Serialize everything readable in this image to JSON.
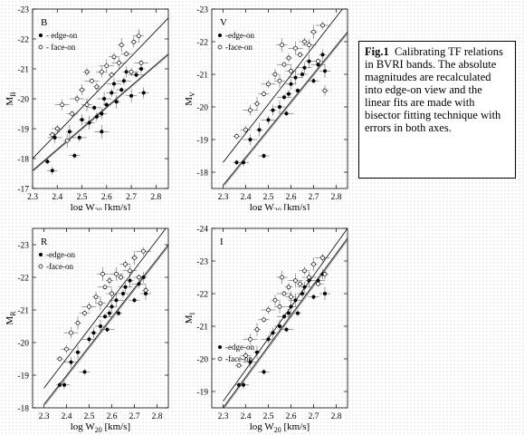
{
  "caption": {
    "label": "Fig.1",
    "text": "Calibrating TF relations in BVRI bands. The absolute magnitudes are recalculated into edge-on view and the linear fits are made with bisector fitting technique with errors in both axes."
  },
  "chart_data": [
    {
      "type": "scatter",
      "band_label": "B",
      "xlabel": "log W20 [km/s]",
      "ylabel": "MB",
      "xlim": [
        2.3,
        2.85
      ],
      "ylim": [
        -17,
        -23
      ],
      "xticks": [
        "2.3",
        "2.4",
        "2.5",
        "2.6",
        "2.7",
        "2.8"
      ],
      "yticks": [
        "-17",
        "-18",
        "-19",
        "-20",
        "-21",
        "-22",
        "-23"
      ],
      "legend_placement": "top-left",
      "series": [
        {
          "name": "- edge-on",
          "marker": "filled-circle",
          "fit": [
            [
              2.3,
              -17.6
            ],
            [
              2.85,
              -21.5
            ]
          ],
          "points": [
            [
              2.36,
              -17.9
            ],
            [
              2.38,
              -17.6
            ],
            [
              2.39,
              -18.7
            ],
            [
              2.45,
              -18.9
            ],
            [
              2.47,
              -18.1
            ],
            [
              2.49,
              -18.7
            ],
            [
              2.5,
              -19.3
            ],
            [
              2.53,
              -19.2
            ],
            [
              2.55,
              -19.7
            ],
            [
              2.56,
              -19.4
            ],
            [
              2.58,
              -19.5
            ],
            [
              2.59,
              -20.0
            ],
            [
              2.6,
              -19.8
            ],
            [
              2.62,
              -20.2
            ],
            [
              2.63,
              -20.5
            ],
            [
              2.64,
              -19.9
            ],
            [
              2.66,
              -20.3
            ],
            [
              2.67,
              -20.6
            ],
            [
              2.68,
              -20.9
            ],
            [
              2.7,
              -20.1
            ],
            [
              2.72,
              -20.8
            ],
            [
              2.74,
              -21.0
            ],
            [
              2.75,
              -20.2
            ],
            [
              2.58,
              -18.9
            ]
          ]
        },
        {
          "name": "- face-on",
          "marker": "open-circle",
          "fit": [
            [
              2.3,
              -18.0
            ],
            [
              2.85,
              -22.7
            ]
          ],
          "points": [
            [
              2.38,
              -18.8
            ],
            [
              2.4,
              -19.0
            ],
            [
              2.42,
              -19.8
            ],
            [
              2.44,
              -18.6
            ],
            [
              2.46,
              -19.5
            ],
            [
              2.48,
              -20.0
            ],
            [
              2.5,
              -20.3
            ],
            [
              2.52,
              -19.8
            ],
            [
              2.54,
              -20.6
            ],
            [
              2.56,
              -20.4
            ],
            [
              2.58,
              -20.9
            ],
            [
              2.6,
              -21.1
            ],
            [
              2.62,
              -20.8
            ],
            [
              2.63,
              -21.4
            ],
            [
              2.65,
              -21.2
            ],
            [
              2.66,
              -21.8
            ],
            [
              2.68,
              -21.5
            ],
            [
              2.7,
              -20.9
            ],
            [
              2.71,
              -21.9
            ],
            [
              2.73,
              -22.1
            ],
            [
              2.74,
              -21.2
            ],
            [
              2.52,
              -20.9
            ]
          ]
        }
      ]
    },
    {
      "type": "scatter",
      "band_label": "V",
      "xlabel": "log W20 [km/s]",
      "ylabel": "MV",
      "xlim": [
        2.25,
        2.85
      ],
      "ylim": [
        -17.5,
        -23
      ],
      "xticks": [
        "2.3",
        "2.4",
        "2.5",
        "2.6",
        "2.7",
        "2.8"
      ],
      "yticks": [
        "-18",
        "-19",
        "-20",
        "-21",
        "-22",
        "-23"
      ],
      "legend_placement": "top-left",
      "series": [
        {
          "name": "-edge-on",
          "marker": "filled-circle",
          "fit": [
            [
              2.3,
              -17.6
            ],
            [
              2.85,
              -22.3
            ]
          ],
          "points": [
            [
              2.36,
              -18.3
            ],
            [
              2.39,
              -18.3
            ],
            [
              2.42,
              -19.0
            ],
            [
              2.46,
              -19.3
            ],
            [
              2.48,
              -18.5
            ],
            [
              2.5,
              -19.6
            ],
            [
              2.52,
              -19.9
            ],
            [
              2.55,
              -20.0
            ],
            [
              2.57,
              -20.3
            ],
            [
              2.59,
              -20.4
            ],
            [
              2.6,
              -20.7
            ],
            [
              2.62,
              -20.9
            ],
            [
              2.63,
              -20.5
            ],
            [
              2.65,
              -21.0
            ],
            [
              2.66,
              -21.2
            ],
            [
              2.68,
              -21.4
            ],
            [
              2.7,
              -20.8
            ],
            [
              2.72,
              -21.3
            ],
            [
              2.74,
              -21.6
            ],
            [
              2.75,
              -21.1
            ],
            [
              2.58,
              -19.8
            ]
          ]
        },
        {
          "name": "-face-on",
          "marker": "open-circle",
          "fit": [
            [
              2.3,
              -18.3
            ],
            [
              2.85,
              -23.2
            ]
          ],
          "points": [
            [
              2.36,
              -19.1
            ],
            [
              2.4,
              -19.3
            ],
            [
              2.42,
              -19.9
            ],
            [
              2.45,
              -20.1
            ],
            [
              2.48,
              -20.4
            ],
            [
              2.5,
              -20.7
            ],
            [
              2.53,
              -21.0
            ],
            [
              2.55,
              -20.8
            ],
            [
              2.57,
              -21.3
            ],
            [
              2.59,
              -21.5
            ],
            [
              2.6,
              -21.1
            ],
            [
              2.62,
              -21.8
            ],
            [
              2.64,
              -21.6
            ],
            [
              2.66,
              -22.0
            ],
            [
              2.68,
              -21.9
            ],
            [
              2.7,
              -22.3
            ],
            [
              2.72,
              -21.4
            ],
            [
              2.74,
              -22.5
            ],
            [
              2.75,
              -20.5
            ],
            [
              2.56,
              -21.9
            ]
          ]
        }
      ]
    },
    {
      "type": "scatter",
      "band_label": "R",
      "xlabel": "log W20 [km/s]",
      "ylabel": "MR",
      "xlim": [
        2.25,
        2.85
      ],
      "ylim": [
        -18,
        -23.5
      ],
      "xticks": [
        "2.3",
        "2.4",
        "2.5",
        "2.6",
        "2.7",
        "2.8"
      ],
      "yticks": [
        "-18",
        "-19",
        "-20",
        "-21",
        "-22",
        "-23"
      ],
      "legend_placement": "top-left",
      "series": [
        {
          "name": "-edge-on",
          "marker": "filled-circle",
          "fit": [
            [
              2.3,
              -18.1
            ],
            [
              2.85,
              -23.0
            ]
          ],
          "points": [
            [
              2.37,
              -18.7
            ],
            [
              2.39,
              -18.7
            ],
            [
              2.42,
              -19.4
            ],
            [
              2.45,
              -19.7
            ],
            [
              2.48,
              -19.1
            ],
            [
              2.5,
              -20.1
            ],
            [
              2.52,
              -20.3
            ],
            [
              2.55,
              -20.5
            ],
            [
              2.57,
              -20.8
            ],
            [
              2.59,
              -20.9
            ],
            [
              2.6,
              -21.1
            ],
            [
              2.62,
              -21.3
            ],
            [
              2.63,
              -20.9
            ],
            [
              2.65,
              -21.5
            ],
            [
              2.66,
              -21.7
            ],
            [
              2.68,
              -21.9
            ],
            [
              2.7,
              -21.3
            ],
            [
              2.72,
              -21.8
            ],
            [
              2.74,
              -22.0
            ],
            [
              2.75,
              -21.5
            ],
            [
              2.58,
              -20.4
            ]
          ]
        },
        {
          "name": "-face-on",
          "marker": "open-circle",
          "fit": [
            [
              2.3,
              -18.6
            ],
            [
              2.85,
              -23.6
            ]
          ],
          "points": [
            [
              2.37,
              -19.5
            ],
            [
              2.4,
              -19.8
            ],
            [
              2.42,
              -20.3
            ],
            [
              2.45,
              -20.6
            ],
            [
              2.48,
              -20.9
            ],
            [
              2.5,
              -21.1
            ],
            [
              2.53,
              -21.4
            ],
            [
              2.55,
              -21.2
            ],
            [
              2.57,
              -21.7
            ],
            [
              2.59,
              -21.9
            ],
            [
              2.6,
              -21.5
            ],
            [
              2.62,
              -22.1
            ],
            [
              2.64,
              -22.0
            ],
            [
              2.66,
              -22.4
            ],
            [
              2.68,
              -22.2
            ],
            [
              2.7,
              -22.6
            ],
            [
              2.72,
              -22.0
            ],
            [
              2.74,
              -22.8
            ],
            [
              2.75,
              -21.6
            ],
            [
              2.56,
              -22.1
            ]
          ]
        }
      ]
    },
    {
      "type": "scatter",
      "band_label": "I",
      "xlabel": "log W20 [km/s]",
      "ylabel": "MI",
      "xlim": [
        2.25,
        2.85
      ],
      "ylim": [
        -18.5,
        -24
      ],
      "xticks": [
        "2.3",
        "2.4",
        "2.5",
        "2.6",
        "2.7",
        "2.8"
      ],
      "yticks": [
        "-19",
        "-20",
        "-21",
        "-22",
        "-23",
        "-24"
      ],
      "legend_placement": "bottom-left",
      "series": [
        {
          "name": "-edge-on",
          "marker": "filled-circle",
          "fit": [
            [
              2.3,
              -18.5
            ],
            [
              2.85,
              -23.7
            ]
          ],
          "points": [
            [
              2.37,
              -19.2
            ],
            [
              2.39,
              -19.2
            ],
            [
              2.42,
              -19.9
            ],
            [
              2.45,
              -20.2
            ],
            [
              2.48,
              -19.6
            ],
            [
              2.5,
              -20.6
            ],
            [
              2.52,
              -20.8
            ],
            [
              2.55,
              -21.0
            ],
            [
              2.57,
              -21.3
            ],
            [
              2.59,
              -21.4
            ],
            [
              2.6,
              -21.6
            ],
            [
              2.62,
              -21.8
            ],
            [
              2.63,
              -21.4
            ],
            [
              2.65,
              -22.0
            ],
            [
              2.66,
              -22.2
            ],
            [
              2.68,
              -22.4
            ],
            [
              2.7,
              -21.9
            ],
            [
              2.72,
              -22.4
            ],
            [
              2.74,
              -22.6
            ],
            [
              2.75,
              -22.0
            ],
            [
              2.58,
              -20.9
            ]
          ]
        },
        {
          "name": "-face-on",
          "marker": "open-circle",
          "fit": [
            [
              2.3,
              -18.7
            ],
            [
              2.85,
              -24.0
            ]
          ],
          "points": [
            [
              2.37,
              -19.8
            ],
            [
              2.4,
              -20.1
            ],
            [
              2.42,
              -20.6
            ],
            [
              2.45,
              -20.9
            ],
            [
              2.48,
              -21.2
            ],
            [
              2.5,
              -21.5
            ],
            [
              2.53,
              -21.8
            ],
            [
              2.55,
              -21.6
            ],
            [
              2.57,
              -22.0
            ],
            [
              2.59,
              -22.2
            ],
            [
              2.6,
              -21.9
            ],
            [
              2.62,
              -22.4
            ],
            [
              2.64,
              -22.3
            ],
            [
              2.66,
              -22.7
            ],
            [
              2.68,
              -22.5
            ],
            [
              2.7,
              -22.9
            ],
            [
              2.72,
              -22.3
            ],
            [
              2.74,
              -23.1
            ],
            [
              2.75,
              -22.6
            ],
            [
              2.56,
              -22.5
            ]
          ]
        }
      ]
    }
  ]
}
